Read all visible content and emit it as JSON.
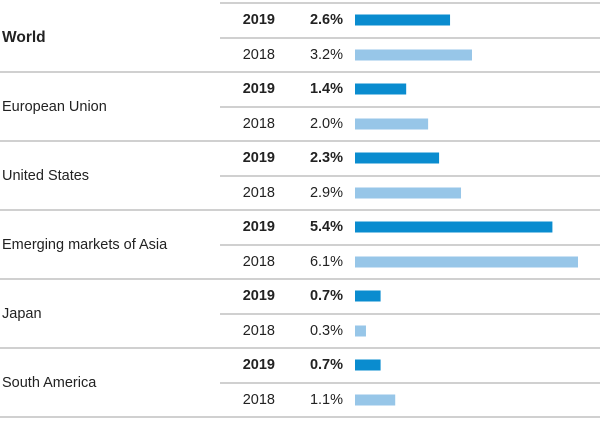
{
  "chart_data": {
    "type": "bar",
    "orientation": "horizontal",
    "categories": [
      "World",
      "European Union",
      "United States",
      "Emerging markets of Asia",
      "Japan",
      "South America"
    ],
    "series": [
      {
        "name": "2019",
        "color": "#0a8ccf",
        "values": [
          2.6,
          1.4,
          2.3,
          5.4,
          0.7,
          0.7
        ],
        "value_labels": [
          "2.6%",
          "1.4%",
          "2.3%",
          "5.4%",
          "0.7%",
          "0.7%"
        ]
      },
      {
        "name": "2018",
        "color": "#97c6e8",
        "values": [
          3.2,
          2.0,
          2.9,
          6.1,
          0.3,
          1.1
        ],
        "value_labels": [
          "3.2%",
          "2.0%",
          "2.9%",
          "6.1%",
          "0.3%",
          "1.1%"
        ]
      }
    ]
  }
}
